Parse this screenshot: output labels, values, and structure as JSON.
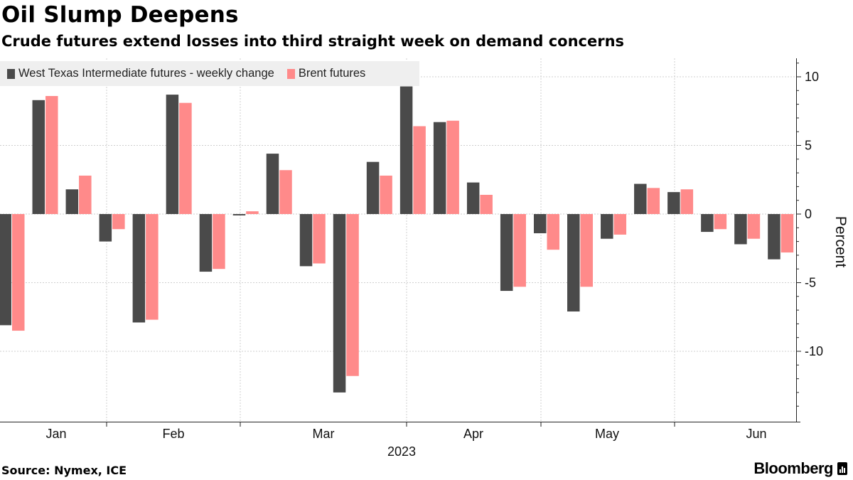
{
  "title": "Oil Slump Deepens",
  "subtitle": "Crude futures extend losses into third straight week on demand concerns",
  "source": "Source: Nymex, ICE",
  "brand": "Bloomberg",
  "colors": {
    "wti": "#4a4a4a",
    "brent": "#ff8a8a",
    "grid": "#cfcfcf",
    "legend_bg": "#efefef"
  },
  "chart_data": {
    "type": "bar",
    "title": "Oil Slump Deepens",
    "subtitle": "Crude futures extend losses into third straight week on demand concerns",
    "xlabel": "2023",
    "ylabel": "Percent",
    "ylim": [
      -15,
      12
    ],
    "yticks": [
      10,
      5,
      0,
      -5,
      -10
    ],
    "ytick_labels": [
      "10",
      "5",
      "0",
      "-5",
      "-10"
    ],
    "legend": "top-left",
    "grid": true,
    "month_labels": [
      "Jan",
      "Feb",
      "Mar",
      "Apr",
      "May",
      "Jun"
    ],
    "year_label": "2023",
    "weeks": [
      "Jan wk1",
      "Jan wk2",
      "Jan wk3",
      "Jan wk4",
      "Feb wk1",
      "Feb wk2",
      "Feb wk3",
      "Feb wk4",
      "Mar wk1",
      "Mar wk2",
      "Mar wk3",
      "Mar wk4",
      "Mar wk5",
      "Apr wk1",
      "Apr wk2",
      "Apr wk3",
      "Apr wk4",
      "May wk1",
      "May wk2",
      "May wk3",
      "May wk4",
      "Jun wk1",
      "Jun wk2",
      "Jun wk3"
    ],
    "series": [
      {
        "name": "West Texas Intermediate futures - weekly change",
        "key": "wti",
        "values": [
          -8.1,
          8.3,
          1.8,
          -2.0,
          -7.9,
          8.7,
          -4.2,
          -0.1,
          4.4,
          -3.8,
          -13.0,
          3.8,
          9.3,
          6.7,
          2.3,
          -5.6,
          -1.4,
          -7.1,
          -1.8,
          2.2,
          1.6,
          -1.3,
          -2.2,
          -3.3
        ]
      },
      {
        "name": "Brent futures",
        "key": "brent",
        "values": [
          -8.5,
          8.6,
          2.8,
          -1.1,
          -7.7,
          8.1,
          -4.0,
          0.2,
          3.2,
          -3.6,
          -11.8,
          2.8,
          6.4,
          6.8,
          1.4,
          -5.3,
          -2.6,
          -5.3,
          -1.5,
          1.9,
          1.8,
          -1.1,
          -1.8,
          -2.8
        ]
      }
    ]
  }
}
